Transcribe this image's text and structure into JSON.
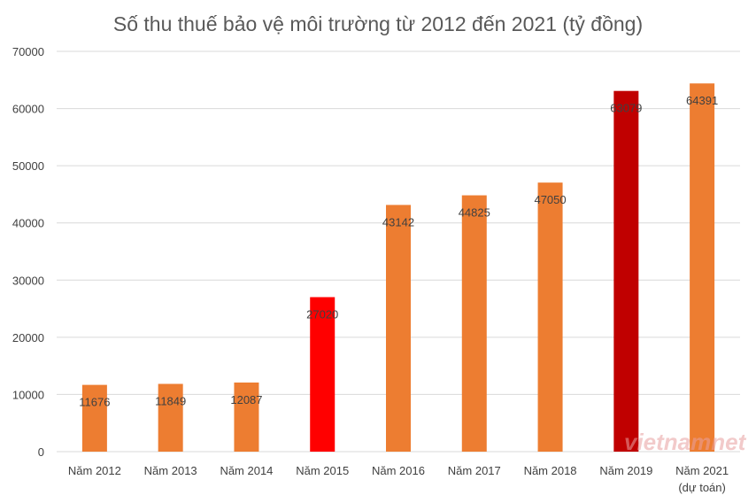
{
  "chart_data": {
    "type": "bar",
    "title": "Số thu thuế bảo vệ môi trường từ 2012 đến 2021 (tỷ đồng)",
    "categories": [
      [
        "Năm 2012"
      ],
      [
        "Năm 2013"
      ],
      [
        "Năm 2014"
      ],
      [
        "Năm 2015"
      ],
      [
        "Năm 2016"
      ],
      [
        "Năm 2017"
      ],
      [
        "Năm 2018"
      ],
      [
        "Năm 2019"
      ],
      [
        "Năm 2021",
        "(dự toán)"
      ]
    ],
    "values": [
      11676,
      11849,
      12087,
      27020,
      43142,
      44825,
      47050,
      63079,
      64391
    ],
    "data_labels": [
      "11676",
      "11849",
      "12087",
      "27020",
      "43142",
      "44825",
      "47050",
      "63079",
      "64391"
    ],
    "colors": [
      "#ed7d31",
      "#ed7d31",
      "#ed7d31",
      "#ff0000",
      "#ed7d31",
      "#ed7d31",
      "#ed7d31",
      "#c00000",
      "#ed7d31"
    ],
    "ylim": [
      0,
      70000
    ],
    "yticks": [
      "0",
      "10000",
      "20000",
      "30000",
      "40000",
      "50000",
      "60000",
      "70000"
    ],
    "grid": true,
    "legend": "none",
    "watermark": "vietnamnet"
  }
}
